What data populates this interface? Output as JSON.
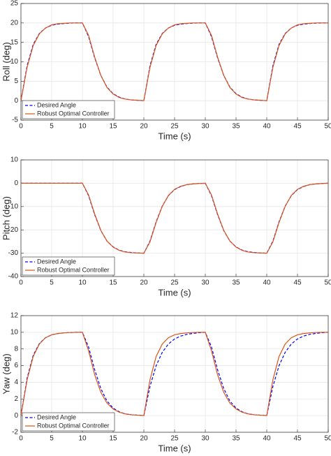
{
  "chart_data": [
    {
      "type": "line",
      "xlabel": "Time (s)",
      "ylabel": "Roll (deg)",
      "x": [
        0,
        1,
        2,
        3,
        4,
        5,
        6,
        7,
        8,
        9,
        10,
        11,
        12,
        13,
        14,
        15,
        16,
        17,
        18,
        19,
        20,
        21,
        22,
        23,
        24,
        25,
        26,
        27,
        28,
        29,
        30,
        31,
        32,
        33,
        34,
        35,
        36,
        37,
        38,
        39,
        40,
        41,
        42,
        43,
        44,
        45,
        46,
        47,
        48,
        49,
        50
      ],
      "series": [
        {
          "name": "Desired Angle",
          "color": "#0000ff",
          "style": "dashed",
          "values": [
            0,
            9,
            14.5,
            17.3,
            18.7,
            19.4,
            19.7,
            19.85,
            19.95,
            20,
            20,
            16.5,
            11,
            6.5,
            3.5,
            1.8,
            0.9,
            0.4,
            0.2,
            0.1,
            0,
            9,
            14.5,
            17.3,
            18.7,
            19.4,
            19.7,
            19.85,
            19.95,
            20,
            20,
            16.5,
            11,
            6.5,
            3.5,
            1.8,
            0.9,
            0.4,
            0.2,
            0.1,
            0,
            9,
            14.5,
            17.3,
            18.7,
            19.4,
            19.7,
            19.85,
            19.95,
            20,
            20
          ]
        },
        {
          "name": "Robust Optimal Controller",
          "color": "#d95319",
          "style": "solid",
          "values": [
            0,
            8.6,
            14.2,
            17.2,
            18.7,
            19.5,
            19.8,
            19.9,
            20,
            20,
            20,
            16.8,
            11.2,
            6.5,
            3.4,
            1.7,
            0.8,
            0.4,
            0.2,
            0.1,
            0,
            8.6,
            14.2,
            17.2,
            18.7,
            19.5,
            19.8,
            19.9,
            20,
            20,
            20,
            16.8,
            11.2,
            6.5,
            3.4,
            1.7,
            0.8,
            0.4,
            0.2,
            0.1,
            0,
            8.6,
            14.2,
            17.2,
            18.7,
            19.5,
            19.8,
            19.9,
            20,
            20,
            20
          ]
        }
      ],
      "xlim": [
        0,
        50
      ],
      "xticks": [
        0,
        5,
        10,
        15,
        20,
        25,
        30,
        35,
        40,
        45,
        50
      ],
      "ylim": [
        -5,
        25
      ],
      "yticks": [
        -5,
        0,
        5,
        10,
        15,
        20,
        25
      ],
      "grid": true,
      "legend": "lower left"
    },
    {
      "type": "line",
      "xlabel": "Time (s)",
      "ylabel": "Pitch (deg)",
      "x": [
        0,
        1,
        2,
        3,
        4,
        5,
        6,
        7,
        8,
        9,
        10,
        11,
        12,
        13,
        14,
        15,
        16,
        17,
        18,
        19,
        20,
        21,
        22,
        23,
        24,
        25,
        26,
        27,
        28,
        29,
        30,
        31,
        32,
        33,
        34,
        35,
        36,
        37,
        38,
        39,
        40,
        41,
        42,
        43,
        44,
        45,
        46,
        47,
        48,
        49,
        50
      ],
      "series": [
        {
          "name": "Desired Angle",
          "color": "#0000ff",
          "style": "dashed",
          "values": [
            0,
            0,
            0,
            0,
            0,
            0,
            0,
            0,
            0,
            0,
            0,
            -5.3,
            -13.5,
            -20.3,
            -24.8,
            -27.3,
            -28.7,
            -29.4,
            -29.7,
            -29.9,
            -30,
            -24.8,
            -16.5,
            -9.8,
            -5.3,
            -2.7,
            -1.4,
            -0.6,
            -0.3,
            -0.1,
            0,
            -5.3,
            -13.5,
            -20.3,
            -24.8,
            -27.3,
            -28.7,
            -29.4,
            -29.7,
            -29.9,
            -30,
            -24.8,
            -16.5,
            -9.8,
            -5.3,
            -2.7,
            -1.4,
            -0.6,
            -0.3,
            -0.1,
            0
          ]
        },
        {
          "name": "Robust Optimal Controller",
          "color": "#d95319",
          "style": "solid",
          "values": [
            0,
            0,
            0,
            0,
            0,
            0,
            0,
            0,
            0,
            0,
            0,
            -5,
            -13.2,
            -20.2,
            -24.8,
            -27.4,
            -28.8,
            -29.5,
            -29.8,
            -29.9,
            -30,
            -25.1,
            -16.8,
            -9.9,
            -5.2,
            -2.6,
            -1.3,
            -0.6,
            -0.3,
            -0.1,
            0,
            -5,
            -13.2,
            -20.2,
            -24.8,
            -27.4,
            -28.8,
            -29.5,
            -29.8,
            -29.9,
            -30,
            -25.1,
            -16.8,
            -9.9,
            -5.2,
            -2.6,
            -1.3,
            -0.6,
            -0.3,
            -0.1,
            0
          ]
        }
      ],
      "xlim": [
        0,
        50
      ],
      "xticks": [
        0,
        5,
        10,
        15,
        20,
        25,
        30,
        35,
        40,
        45,
        50
      ],
      "ylim": [
        -40,
        10
      ],
      "yticks": [
        -40,
        -30,
        -20,
        -10,
        0,
        10
      ],
      "grid": true,
      "legend": "lower left"
    },
    {
      "type": "line",
      "xlabel": "Time (s)",
      "ylabel": "Yaw (deg)",
      "x": [
        0,
        1,
        2,
        3,
        4,
        5,
        6,
        7,
        8,
        9,
        10,
        11,
        12,
        13,
        14,
        15,
        16,
        17,
        18,
        19,
        20,
        21,
        22,
        23,
        24,
        25,
        26,
        27,
        28,
        29,
        30,
        31,
        32,
        33,
        34,
        35,
        36,
        37,
        38,
        39,
        40,
        41,
        42,
        43,
        44,
        45,
        46,
        47,
        48,
        49,
        50
      ],
      "series": [
        {
          "name": "Desired Angle",
          "color": "#0000ff",
          "style": "dashed",
          "values": [
            0,
            4.5,
            7.25,
            8.65,
            9.35,
            9.7,
            9.85,
            9.93,
            9.97,
            10,
            10,
            8.25,
            5.5,
            3.25,
            1.75,
            0.9,
            0.45,
            0.2,
            0.1,
            0.05,
            0,
            3.5,
            6,
            7.6,
            8.6,
            9.2,
            9.55,
            9.75,
            9.87,
            9.95,
            10,
            8.25,
            5.5,
            3.25,
            1.75,
            0.9,
            0.45,
            0.2,
            0.1,
            0.05,
            0,
            3.5,
            6,
            7.6,
            8.6,
            9.2,
            9.55,
            9.75,
            9.87,
            9.95,
            10
          ]
        },
        {
          "name": "Robust Optimal Controller",
          "color": "#d95319",
          "style": "solid",
          "values": [
            0,
            4.3,
            7.1,
            8.6,
            9.35,
            9.7,
            9.85,
            9.93,
            9.97,
            10,
            10,
            7.8,
            4.9,
            2.8,
            1.5,
            0.8,
            0.4,
            0.2,
            0.1,
            0.05,
            0,
            4.3,
            7.1,
            8.6,
            9.35,
            9.7,
            9.85,
            9.93,
            9.97,
            10,
            10,
            7.8,
            4.9,
            2.8,
            1.5,
            0.8,
            0.4,
            0.2,
            0.1,
            0.05,
            0,
            4.3,
            7.1,
            8.6,
            9.35,
            9.7,
            9.85,
            9.93,
            9.97,
            10,
            10
          ]
        }
      ],
      "xlim": [
        0,
        50
      ],
      "xticks": [
        0,
        5,
        10,
        15,
        20,
        25,
        30,
        35,
        40,
        45,
        50
      ],
      "ylim": [
        -2,
        12
      ],
      "yticks": [
        -2,
        0,
        2,
        4,
        6,
        8,
        10,
        12
      ],
      "grid": true,
      "legend": "lower left"
    }
  ]
}
